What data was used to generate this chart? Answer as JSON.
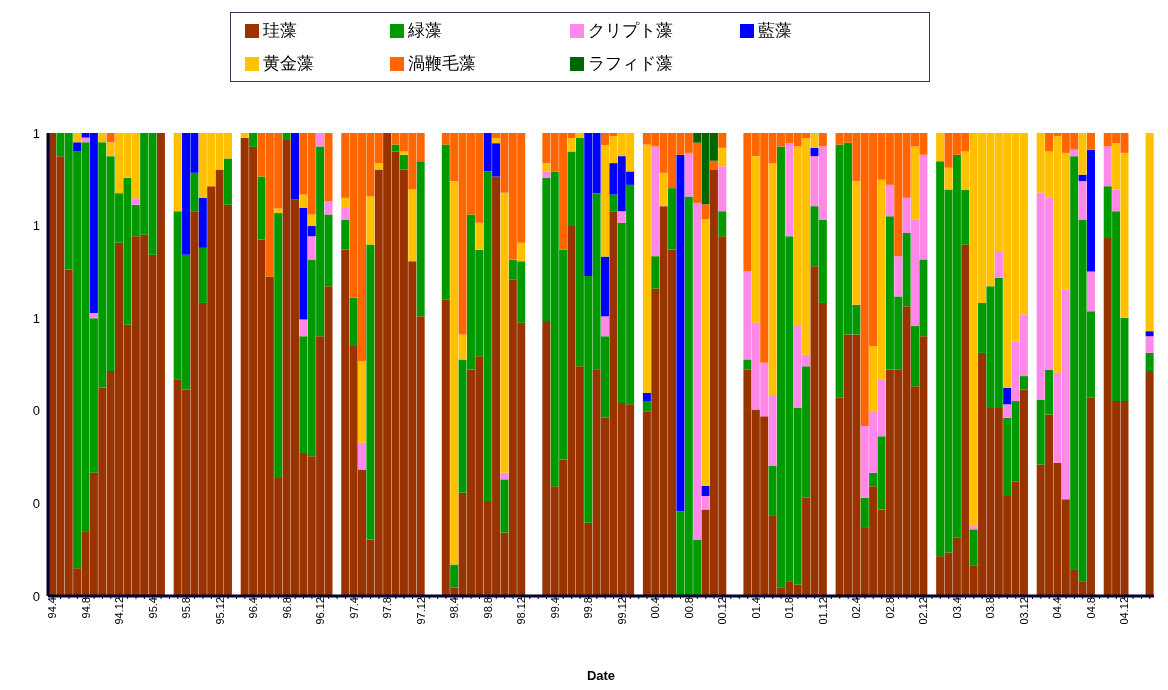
{
  "chart_data": {
    "type": "bar",
    "stacked": true,
    "xlabel": "Date",
    "legend": "top",
    "grid": false,
    "ylim": [
      0,
      1
    ],
    "yticks": [
      0,
      {
        "value": 0.2,
        "label": "0"
      },
      {
        "value": 0.4,
        "label": "0"
      },
      {
        "value": 0.6,
        "label": "1"
      },
      {
        "value": 0.8,
        "label": "1"
      },
      1
    ],
    "categories": [
      "94.4",
      null,
      null,
      null,
      "94.8",
      null,
      null,
      null,
      "94.12",
      null,
      null,
      null,
      "95.4",
      null,
      null,
      null,
      "95.8",
      null,
      null,
      null,
      "95.12",
      null,
      null,
      null,
      "96.4",
      null,
      null,
      null,
      "96.8",
      null,
      null,
      null,
      "96.12",
      null,
      null,
      null,
      "97.4",
      null,
      null,
      null,
      "97.8",
      null,
      null,
      null,
      "97.12",
      null,
      null,
      null,
      "98.4",
      null,
      null,
      null,
      "98.8",
      null,
      null,
      null,
      "98.12",
      null,
      null,
      null,
      "99.4",
      null,
      null,
      null,
      "99.8",
      null,
      null,
      null,
      "99.12",
      null,
      null,
      null,
      "00.4",
      null,
      null,
      null,
      "00.8",
      null,
      null,
      null,
      "00.12",
      null,
      null,
      null,
      "01.4",
      null,
      null,
      null,
      "01.8",
      null,
      null,
      null,
      "01.12",
      null,
      null,
      null,
      "02.4",
      null,
      null,
      null,
      "02.8",
      null,
      null,
      null,
      "02.12",
      null,
      null,
      null,
      "03.4",
      null,
      null,
      null,
      "03.8",
      null,
      null,
      null,
      "03.12",
      null,
      null,
      null,
      "04.4",
      null,
      null,
      null,
      "04.8",
      null,
      null,
      null,
      "04.12",
      null,
      null,
      null
    ],
    "series": [
      {
        "name": "珪藻",
        "color": "#993300",
        "values": [
          1,
          0.95,
          0.705,
          0.06,
          0.14,
          0.266,
          0.45,
          0.486,
          0.763,
          0.586,
          0.777,
          0.78,
          0.737,
          1,
          null,
          0.468,
          0.446,
          0.831,
          0.633,
          0.885,
          0.921,
          0.845,
          null,
          0.99,
          0.97,
          0.77,
          0.69,
          0.255,
          0.985,
          0.856,
          0.309,
          0.302,
          0.561,
          0.669,
          null,
          0.748,
          0.54,
          0.273,
          0.122,
          0.921,
          1,
          0.96,
          0.921,
          0.723,
          0.604,
          null,
          null,
          0.64,
          0.018,
          0.223,
          0.489,
          0.518,
          0.205,
          0.906,
          0.137,
          0.683,
          0.59,
          null,
          null,
          0.594,
          0.237,
          0.295,
          0.799,
          0.496,
          0.158,
          0.49,
          0.385,
          0.831,
          0.417,
          0.414,
          null,
          0.399,
          0.664,
          0.842,
          0.748,
          0,
          0,
          0,
          0.187,
          0.92,
          0.777,
          null,
          null,
          0.489,
          0.403,
          0.388,
          0.173,
          0.018,
          0.032,
          0.025,
          0.212,
          0.712,
          0.633,
          null,
          0.428,
          0.565,
          0.565,
          0.147,
          0.237,
          0.187,
          0.489,
          0.489,
          0.626,
          0.453,
          0.561,
          null,
          0.086,
          0.094,
          0.126,
          0.759,
          0.065,
          0.525,
          0.406,
          0.406,
          0.216,
          0.248,
          0.446,
          null,
          0.284,
          0.392,
          0.288,
          0.209,
          0.058,
          0.032,
          0.428,
          null,
          0.773,
          0.421,
          0.421,
          null,
          null,
          0.486
        ]
      },
      {
        "name": "緑藻",
        "color": "#009900",
        "values": [
          0,
          0.05,
          0.295,
          0.9,
          0.84,
          0.334,
          0.53,
          0.464,
          0.107,
          0.317,
          0.068,
          0.22,
          0.263,
          0,
          null,
          0.363,
          0.291,
          0.083,
          0.119,
          0,
          0,
          0.1,
          null,
          0,
          0.03,
          0.136,
          0,
          0.572,
          0.015,
          0,
          0.252,
          0.425,
          0.41,
          0.155,
          null,
          0.065,
          0.104,
          0,
          0.637,
          0,
          0,
          0.015,
          0.032,
          0,
          0.335,
          null,
          null,
          0.335,
          0.05,
          0.288,
          0.335,
          0.23,
          0.712,
          0,
          0.115,
          0.043,
          0.133,
          null,
          null,
          0.309,
          0.68,
          0.453,
          0.161,
          0.493,
          0.533,
          0.38,
          0.176,
          0.036,
          0.389,
          0.474,
          null,
          0.022,
          0.07,
          0,
          0.133,
          0.183,
          0.863,
          0.122,
          0,
          0,
          0.054,
          null,
          null,
          0.022,
          0,
          0,
          0.108,
          0.953,
          0.745,
          0.381,
          0.284,
          0.13,
          0.18,
          null,
          0.547,
          0.414,
          0.064,
          0.065,
          0.029,
          0.158,
          0.331,
          0.158,
          0.158,
          0.13,
          0.166,
          null,
          0.853,
          0.784,
          0.827,
          0.118,
          0.079,
          0.108,
          0.263,
          0.281,
          0.169,
          0.173,
          0.029,
          null,
          0.14,
          0.097,
          0,
          0,
          0.892,
          0.781,
          0.187,
          null,
          0.112,
          0.41,
          0.18,
          null,
          null,
          0.039
        ]
      },
      {
        "name": "クリプト藻",
        "color": "#ff88e8",
        "values": [
          0,
          0,
          0,
          0,
          0.01,
          0.011,
          0,
          0,
          0,
          0,
          0.014,
          0,
          0,
          0,
          null,
          0,
          0,
          0,
          0,
          0,
          0,
          0,
          null,
          0,
          0,
          0,
          0,
          0,
          0,
          0,
          0.036,
          0.05,
          0.029,
          0.029,
          null,
          0.025,
          0,
          0.058,
          0,
          0,
          0,
          0,
          0,
          0,
          0,
          null,
          null,
          0,
          0,
          0,
          0,
          0,
          0,
          0,
          0.014,
          0,
          0,
          null,
          null,
          0.014,
          0,
          0,
          0,
          0,
          0,
          0,
          0.043,
          0,
          0.025,
          0,
          null,
          0,
          0.237,
          0,
          0,
          0,
          0.094,
          0.727,
          0.029,
          0,
          0.097,
          null,
          null,
          0.191,
          0.187,
          0.116,
          0.151,
          0,
          0.201,
          0.177,
          0.025,
          0.108,
          0.158,
          null,
          0,
          0,
          0,
          0.155,
          0.133,
          0.123,
          0.068,
          0.087,
          0.076,
          0.23,
          0.226,
          null,
          0,
          0,
          0,
          0,
          0.007,
          0,
          0,
          0.058,
          0.029,
          0.129,
          0.133,
          null,
          0.447,
          0.371,
          0.194,
          0.453,
          0.014,
          0.083,
          0.086,
          null,
          0.086,
          0.047,
          0,
          null,
          null,
          0.036
        ]
      },
      {
        "name": "藍藻",
        "color": "#0000ff",
        "values": [
          0,
          0,
          0,
          0.02,
          0.01,
          0.389,
          0,
          0,
          0,
          0,
          0,
          0,
          0,
          0,
          null,
          0,
          0.263,
          0.086,
          0.108,
          0,
          0,
          0,
          null,
          0,
          0,
          0,
          0,
          0,
          0,
          0.144,
          0.241,
          0.022,
          0,
          0,
          null,
          0,
          0,
          0,
          0,
          0,
          0,
          0,
          0,
          0,
          0,
          null,
          null,
          0,
          0,
          0,
          0,
          0,
          0.083,
          0.072,
          0,
          0,
          0,
          null,
          null,
          0,
          0,
          0,
          0,
          0,
          0.309,
          0.13,
          0.129,
          0.068,
          0.119,
          0.029,
          null,
          0.018,
          0,
          0,
          0,
          0.77,
          0,
          0,
          0.022,
          0,
          0,
          null,
          null,
          0,
          0,
          0,
          0,
          0,
          0,
          0,
          0,
          0.018,
          0,
          null,
          0,
          0,
          0,
          0,
          0,
          0,
          0,
          0,
          0,
          0,
          0,
          null,
          0,
          0,
          0,
          0,
          0,
          0,
          0,
          0,
          0.036,
          0,
          0,
          null,
          0,
          0,
          0,
          0,
          0,
          0.014,
          0.263,
          null,
          0,
          0,
          0,
          null,
          null,
          0.011
        ]
      },
      {
        "name": "黄金藻",
        "color": "#ffc000",
        "values": [
          0,
          0,
          0,
          0.02,
          0,
          0,
          0.02,
          0.03,
          0.13,
          0.097,
          0.141,
          0,
          0,
          0,
          null,
          0.169,
          0,
          0,
          0.14,
          0.115,
          0.079,
          0.055,
          null,
          0.01,
          0,
          0,
          0,
          0.01,
          0,
          0,
          0.029,
          0.025,
          0,
          0,
          null,
          0.022,
          0,
          0.176,
          0.104,
          0.014,
          0,
          0,
          0.007,
          0.155,
          0,
          null,
          null,
          0,
          0.828,
          0.054,
          0,
          0.058,
          0,
          0.011,
          0.605,
          0,
          0.04,
          null,
          null,
          0.018,
          0,
          0,
          0.029,
          0.011,
          0,
          0,
          0.241,
          0.058,
          0.05,
          0.083,
          null,
          0.536,
          0,
          0.072,
          0,
          0,
          0,
          0,
          0.576,
          0,
          0.04,
          null,
          null,
          0,
          0.36,
          0,
          0.503,
          0,
          0,
          0.388,
          0.468,
          0.032,
          0,
          null,
          0,
          0,
          0.267,
          0,
          0.141,
          0.431,
          0,
          0,
          0,
          0.158,
          0,
          null,
          0.061,
          0.047,
          0,
          0.083,
          0.849,
          0.367,
          0.331,
          0.255,
          0.55,
          0.45,
          0.392,
          null,
          0.129,
          0.1,
          0.511,
          0.295,
          0,
          0.09,
          0,
          null,
          0,
          0.1,
          0.356,
          null,
          null,
          0.428
        ]
      },
      {
        "name": "渦鞭毛藻",
        "color": "#ff6600",
        "values": [
          0,
          0,
          0,
          0,
          0,
          0,
          0,
          0.02,
          0,
          0,
          0,
          0,
          0,
          0,
          null,
          0,
          0,
          0,
          0,
          0,
          0,
          0,
          null,
          0,
          0,
          0.094,
          0.31,
          0.163,
          0,
          0,
          0.133,
          0.176,
          0,
          0.147,
          null,
          0.14,
          0.356,
          0.493,
          0.137,
          0.065,
          0,
          0.025,
          0.04,
          0.122,
          0.061,
          null,
          null,
          0.025,
          0.104,
          0.435,
          0.176,
          0.194,
          0,
          0.011,
          0.129,
          0.274,
          0.237,
          null,
          null,
          0.065,
          0.083,
          0.252,
          0.011,
          0,
          0,
          0,
          0.026,
          0.007,
          0,
          0,
          null,
          0.025,
          0.029,
          0.086,
          0.119,
          0.047,
          0.043,
          0.13,
          0.032,
          0.02,
          0.032,
          null,
          null,
          0.298,
          0.05,
          0.496,
          0.065,
          0.029,
          0.022,
          0.029,
          0.011,
          0,
          0.029,
          null,
          0.025,
          0.021,
          0.104,
          0.633,
          0.46,
          0.101,
          0.112,
          0.266,
          0.14,
          0.029,
          0.047,
          null,
          0,
          0.075,
          0.047,
          0.04,
          0,
          0,
          0,
          0,
          0,
          0,
          0,
          null,
          0,
          0.04,
          0.007,
          0.043,
          0.036,
          0,
          0.036,
          null,
          0.029,
          0.022,
          0.043,
          null,
          null,
          0
        ]
      },
      {
        "name": "ラフィド藻",
        "color": "#006600",
        "values": [
          0,
          0,
          0,
          0,
          0,
          0,
          0,
          0,
          0,
          0,
          0,
          0,
          0,
          0,
          null,
          0,
          0,
          0,
          0,
          0,
          0,
          0,
          null,
          0,
          0,
          0,
          0,
          0,
          0,
          0,
          0,
          0,
          0,
          0,
          null,
          0,
          0,
          0,
          0,
          0,
          0,
          0,
          0,
          0,
          0,
          null,
          null,
          0,
          0,
          0,
          0,
          0,
          0,
          0,
          0,
          0,
          0,
          null,
          null,
          0,
          0,
          0,
          0,
          0,
          0,
          0,
          0,
          0,
          0,
          0,
          null,
          0,
          0,
          0,
          0,
          0,
          0,
          0.021,
          0.154,
          0.06,
          0,
          null,
          null,
          0,
          0,
          0,
          0,
          0,
          0,
          0,
          0,
          0,
          0,
          null,
          0,
          0,
          0,
          0,
          0,
          0,
          0,
          0,
          0,
          0,
          0,
          null,
          0,
          0,
          0,
          0,
          0,
          0,
          0,
          0,
          0,
          0,
          0,
          null,
          0,
          0,
          0,
          0,
          0,
          0,
          0,
          null,
          0,
          0,
          0,
          null,
          null,
          0
        ]
      }
    ]
  }
}
